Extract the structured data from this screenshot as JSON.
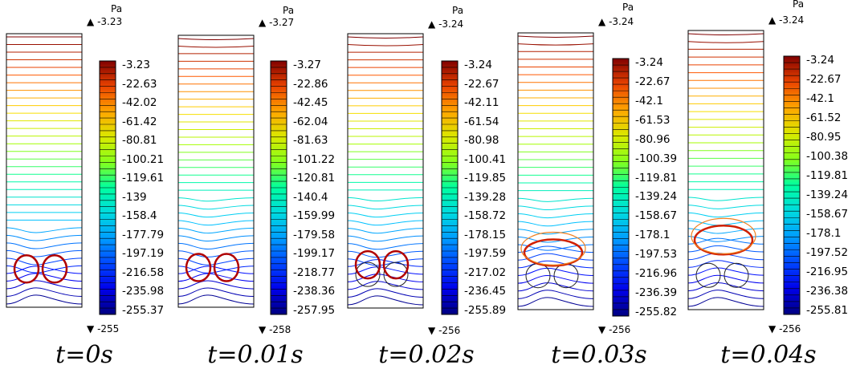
{
  "figure": {
    "panels": [
      {
        "unit": "Pa",
        "max_label": "-3.23",
        "min_label": "-255",
        "ticks": [
          "-3.23",
          "-22.63",
          "-42.02",
          "-61.42",
          "-80.81",
          "-100.21",
          "-119.61",
          "-139",
          "-158.4",
          "-177.79",
          "-197.19",
          "-216.58",
          "-235.98",
          "-255.37"
        ],
        "caption": "t=0s",
        "bubble_rise": 0
      },
      {
        "unit": "Pa",
        "max_label": "-3.27",
        "min_label": "-258",
        "ticks": [
          "-3.27",
          "-22.86",
          "-42.45",
          "-62.04",
          "-81.63",
          "-101.22",
          "-120.81",
          "-140.4",
          "-159.99",
          "-179.58",
          "-199.17",
          "-218.77",
          "-238.36",
          "-257.95"
        ],
        "caption": "t=0.01s",
        "bubble_rise": 0.1
      },
      {
        "unit": "Pa",
        "max_label": "-3.24",
        "min_label": "-256",
        "ticks": [
          "-3.24",
          "-22.67",
          "-42.11",
          "-61.54",
          "-80.98",
          "-100.41",
          "-119.85",
          "-139.28",
          "-158.72",
          "-178.15",
          "-197.59",
          "-217.02",
          "-236.45",
          "-255.89"
        ],
        "caption": "t=0.02s",
        "bubble_rise": 0.3
      },
      {
        "unit": "Pa",
        "max_label": "-3.24",
        "min_label": "-256",
        "ticks": [
          "-3.24",
          "-22.67",
          "-42.1",
          "-61.53",
          "-80.96",
          "-100.39",
          "-119.81",
          "-139.24",
          "-158.67",
          "-178.1",
          "-197.53",
          "-216.96",
          "-236.39",
          "-255.82"
        ],
        "caption": "t=0.03s",
        "bubble_rise": 0.6
      },
      {
        "unit": "Pa",
        "max_label": "-3.24",
        "min_label": "-256",
        "ticks": [
          "-3.24",
          "-22.67",
          "-42.1",
          "-61.52",
          "-80.95",
          "-100.38",
          "-119.81",
          "-139.24",
          "-158.67",
          "-178.1",
          "-197.52",
          "-216.95",
          "-236.38",
          "-255.81"
        ],
        "caption": "t=0.04s",
        "bubble_rise": 1.0
      }
    ]
  }
}
